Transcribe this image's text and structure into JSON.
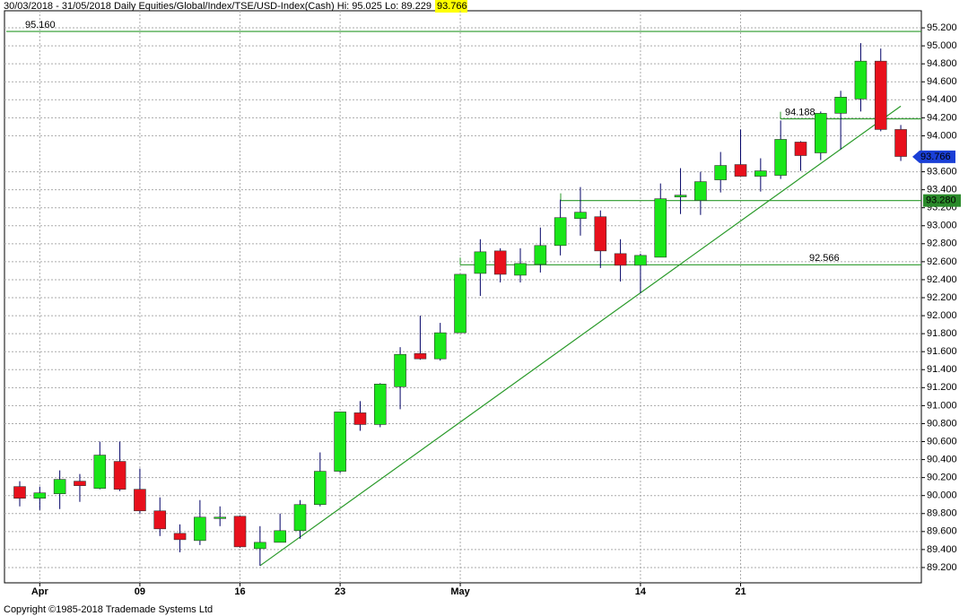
{
  "chart_data": {
    "type": "candlestick",
    "title": "30/03/2018 - 31/05/2018  Daily  Equities/Global/Index/TSE/USD-Index(Cash)  Hi: 95.025  Lo: 89.229",
    "last_price": 93.766,
    "footer": "Copyright ©1985-2018 Trademade Systems Ltd",
    "categories": [
      null,
      "Apr",
      null,
      null,
      null,
      null,
      "09",
      null,
      null,
      null,
      null,
      "16",
      null,
      null,
      null,
      null,
      "23",
      null,
      null,
      null,
      null,
      null,
      "May",
      null,
      null,
      null,
      null,
      null,
      null,
      null,
      null,
      "14",
      null,
      null,
      null,
      null,
      "21",
      null,
      null,
      null,
      null,
      null,
      null,
      null,
      null
    ],
    "series": [
      {
        "name": "open",
        "values": [
          90.1,
          89.97,
          90.02,
          90.16,
          90.08,
          90.38,
          90.07,
          89.83,
          89.58,
          89.5,
          89.75,
          89.77,
          89.41,
          89.48,
          89.61,
          89.9,
          90.27,
          90.92,
          90.79,
          91.21,
          91.58,
          91.52,
          91.81,
          92.47,
          92.72,
          92.45,
          92.57,
          92.78,
          93.08,
          93.1,
          92.69,
          92.56,
          92.65,
          93.32,
          93.28,
          93.51,
          93.68,
          93.55,
          93.56,
          93.93,
          93.81,
          94.25,
          94.41,
          94.83,
          94.07
        ]
      },
      {
        "name": "high",
        "values": [
          90.16,
          90.1,
          90.28,
          90.24,
          90.6,
          90.6,
          90.3,
          89.98,
          89.68,
          89.95,
          89.88,
          89.78,
          89.66,
          89.8,
          89.95,
          90.48,
          90.93,
          91.05,
          91.25,
          91.65,
          92.0,
          91.92,
          92.46,
          92.85,
          92.75,
          92.75,
          92.98,
          93.29,
          93.43,
          93.17,
          92.85,
          92.69,
          93.47,
          93.64,
          93.6,
          93.82,
          94.07,
          93.75,
          94.17,
          93.94,
          94.27,
          94.5,
          95.03,
          94.97,
          94.12
        ]
      },
      {
        "name": "low",
        "values": [
          89.88,
          89.84,
          89.85,
          89.93,
          90.07,
          90.05,
          89.8,
          89.55,
          89.37,
          89.45,
          89.66,
          89.42,
          89.22,
          89.48,
          89.52,
          89.88,
          90.25,
          90.72,
          90.76,
          90.96,
          91.51,
          91.5,
          91.81,
          92.22,
          92.37,
          92.37,
          92.48,
          92.67,
          92.89,
          92.53,
          92.38,
          92.25,
          92.65,
          93.13,
          93.12,
          93.37,
          93.55,
          93.38,
          93.52,
          93.61,
          93.73,
          93.85,
          94.27,
          94.05,
          93.72
        ]
      },
      {
        "name": "close",
        "values": [
          89.97,
          90.03,
          90.18,
          90.11,
          90.45,
          90.07,
          89.83,
          89.63,
          89.51,
          89.76,
          89.76,
          89.43,
          89.48,
          89.61,
          89.9,
          90.27,
          90.93,
          90.79,
          91.24,
          91.57,
          91.52,
          91.81,
          92.46,
          92.71,
          92.46,
          92.58,
          92.78,
          93.09,
          93.15,
          92.72,
          92.56,
          92.67,
          93.3,
          93.34,
          93.49,
          93.67,
          93.55,
          93.61,
          93.96,
          93.78,
          94.25,
          94.43,
          94.83,
          94.07,
          93.77
        ]
      }
    ],
    "up_color": "#19e619",
    "down_color": "#e8101c",
    "wick_color": "#000066",
    "levels": [
      {
        "value": 95.16,
        "label": "95.160"
      },
      {
        "value": 94.188,
        "label": "94.188"
      },
      {
        "value": 93.28,
        "label": "93.280"
      },
      {
        "value": 92.566,
        "label": "92.566"
      }
    ],
    "level_color": "#2a9a2a",
    "trendline": {
      "x": [
        12,
        44
      ],
      "values": [
        89.22,
        94.33
      ]
    },
    "ylim": [
      89.03,
      95.39
    ],
    "yticks": [
      {
        "value": 89.2,
        "label": "89.200"
      },
      {
        "value": 89.4,
        "label": "89.400"
      },
      {
        "value": 89.6,
        "label": "89.600"
      },
      {
        "value": 89.8,
        "label": "89.800"
      },
      {
        "value": 90.0,
        "label": "90.000"
      },
      {
        "value": 90.2,
        "label": "90.200"
      },
      {
        "value": 90.4,
        "label": "90.400"
      },
      {
        "value": 90.6,
        "label": "90.600"
      },
      {
        "value": 90.8,
        "label": "90.800"
      },
      {
        "value": 91.0,
        "label": "91.000"
      },
      {
        "value": 91.2,
        "label": "91.200"
      },
      {
        "value": 91.4,
        "label": "91.400"
      },
      {
        "value": 91.6,
        "label": "91.600"
      },
      {
        "value": 91.8,
        "label": "91.800"
      },
      {
        "value": 92.0,
        "label": "92.000"
      },
      {
        "value": 92.2,
        "label": "92.200"
      },
      {
        "value": 92.4,
        "label": "92.400"
      },
      {
        "value": 92.6,
        "label": "92.600"
      },
      {
        "value": 92.8,
        "label": "92.800"
      },
      {
        "value": 93.0,
        "label": "93.000"
      },
      {
        "value": 93.2,
        "label": "93.200"
      },
      {
        "value": 93.4,
        "label": "93.400"
      },
      {
        "value": 93.6,
        "label": "93.600"
      },
      {
        "value": 94.0,
        "label": "94.000"
      },
      {
        "value": 94.2,
        "label": "94.200"
      },
      {
        "value": 94.4,
        "label": "94.400"
      },
      {
        "value": 94.6,
        "label": "94.600"
      },
      {
        "value": 94.8,
        "label": "94.800"
      },
      {
        "value": 95.0,
        "label": "95.000"
      },
      {
        "value": 95.2,
        "label": "95.200"
      }
    ],
    "grid": true
  }
}
